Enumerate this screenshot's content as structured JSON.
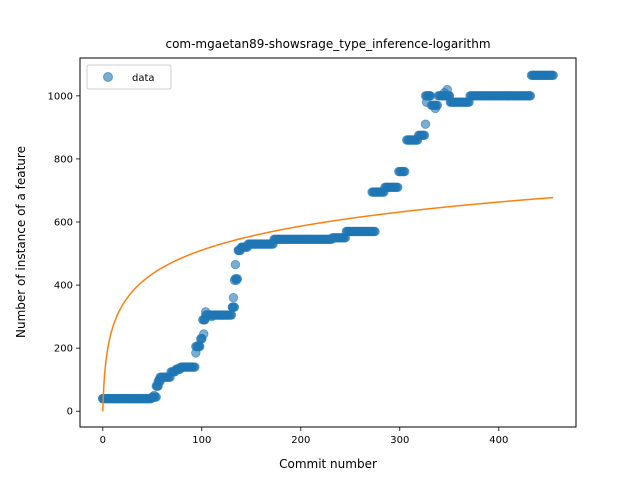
{
  "chart_data": {
    "type": "scatter",
    "title": "com-mgaetan89-showsrage_type_inference-logarithm",
    "xlabel": "Commit number",
    "ylabel": "Number of instance of a feature",
    "xlim": [
      -23,
      478
    ],
    "ylim": [
      -50,
      1120
    ],
    "xticks": [
      0,
      100,
      200,
      300,
      400
    ],
    "yticks": [
      0,
      200,
      400,
      600,
      800,
      1000
    ],
    "grid": false,
    "legend": {
      "placement": "top-left",
      "entries": [
        "data"
      ]
    },
    "colors": {
      "scatter": "#1f77b4",
      "fit": "#ff7f0e"
    },
    "series": [
      {
        "name": "data",
        "kind": "scatter-steps",
        "segments": [
          [
            0,
            49,
            40
          ],
          [
            50,
            54,
            45
          ],
          [
            54,
            56,
            80
          ],
          [
            56,
            58,
            95
          ],
          [
            58,
            68,
            108
          ],
          [
            69,
            73,
            125
          ],
          [
            74,
            78,
            133
          ],
          [
            79,
            93,
            140
          ],
          [
            94,
            98,
            205
          ],
          [
            99,
            100,
            230
          ],
          [
            101,
            103,
            290
          ],
          [
            104,
            130,
            305
          ],
          [
            131,
            133,
            330
          ],
          [
            134,
            136,
            420
          ],
          [
            137,
            139,
            510
          ],
          [
            140,
            146,
            520
          ],
          [
            147,
            172,
            530
          ],
          [
            173,
            231,
            545
          ],
          [
            232,
            245,
            550
          ],
          [
            246,
            275,
            570
          ],
          [
            272,
            284,
            695
          ],
          [
            285,
            298,
            710
          ],
          [
            299,
            305,
            760
          ],
          [
            307,
            318,
            860
          ],
          [
            319,
            325,
            875
          ],
          [
            326,
            331,
            1000
          ],
          [
            332,
            338,
            970
          ],
          [
            339,
            350,
            1000
          ],
          [
            351,
            370,
            980
          ],
          [
            371,
            430,
            1000
          ],
          [
            431,
            432,
            1000
          ],
          [
            433,
            445,
            1065
          ],
          [
            446,
            455,
            1065
          ]
        ],
        "points": [
          [
            0,
            40
          ],
          [
            52,
            50
          ],
          [
            55,
            80
          ],
          [
            57,
            100
          ],
          [
            76,
            135
          ],
          [
            94,
            185
          ],
          [
            97,
            210
          ],
          [
            100,
            230
          ],
          [
            102,
            245
          ],
          [
            103,
            290
          ],
          [
            104,
            315
          ],
          [
            110,
            300
          ],
          [
            120,
            305
          ],
          [
            131,
            330
          ],
          [
            132,
            360
          ],
          [
            133,
            415
          ],
          [
            134,
            465
          ],
          [
            135,
            415
          ],
          [
            137,
            510
          ],
          [
            141,
            520
          ],
          [
            326,
            910
          ],
          [
            327,
            980
          ],
          [
            330,
            1000
          ],
          [
            336,
            960
          ],
          [
            345,
            1010
          ],
          [
            348,
            1020
          ],
          [
            350,
            1000
          ]
        ]
      },
      {
        "name": "",
        "kind": "line",
        "equation": "y = 110.66 * ln(x + 1)",
        "a": 110.66,
        "x_range": [
          0,
          455
        ]
      }
    ]
  }
}
